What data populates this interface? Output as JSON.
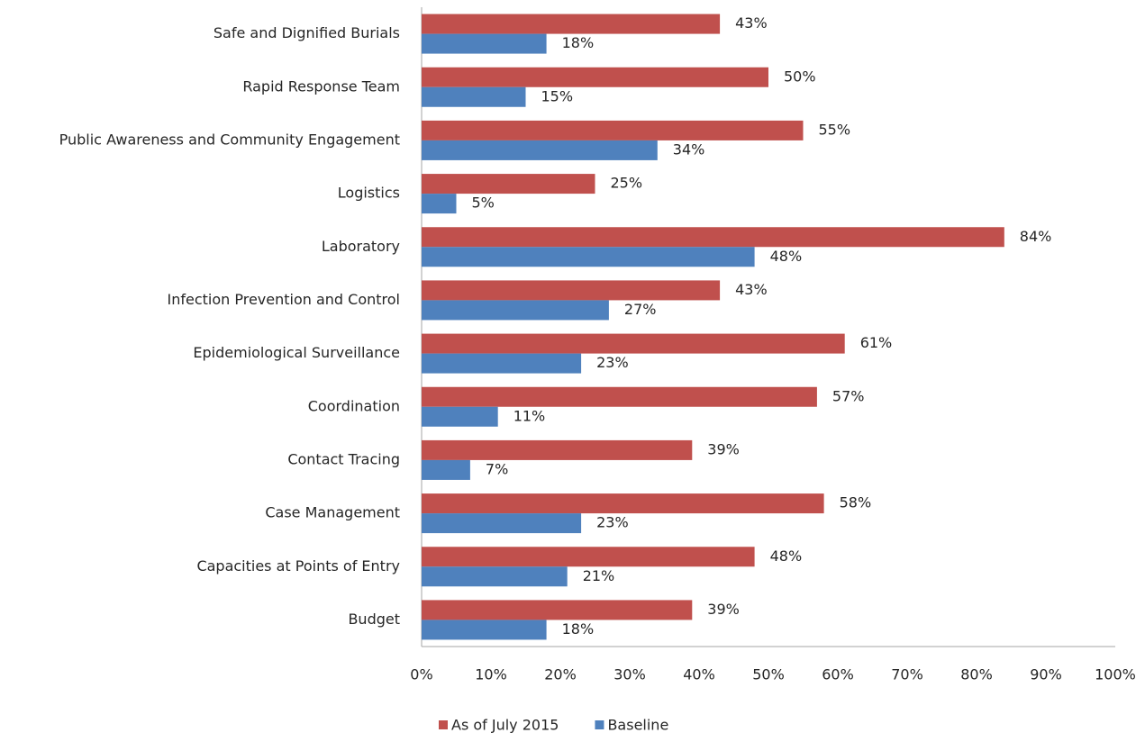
{
  "chart_data": {
    "type": "hbar",
    "categories": [
      "Safe and Dignified Burials",
      "Rapid Response Team",
      "Public Awareness and Community Engagement",
      "Logistics",
      "Laboratory",
      "Infection Prevention and Control",
      "Epidemiological Surveillance",
      "Coordination",
      "Contact Tracing",
      "Case Management",
      "Capacities at Points of Entry",
      "Budget"
    ],
    "series": [
      {
        "name": "As of July 2015",
        "color": "#c0504d",
        "values": [
          43,
          50,
          55,
          25,
          84,
          43,
          61,
          57,
          39,
          58,
          48,
          39
        ],
        "value_labels": [
          "43%",
          "50%",
          "55%",
          "25%",
          "84%",
          "43%",
          "61%",
          "57%",
          "39%",
          "58%",
          "48%",
          "39%"
        ]
      },
      {
        "name": "Baseline",
        "color": "#4f81bd",
        "values": [
          18,
          15,
          34,
          5,
          48,
          27,
          23,
          11,
          7,
          23,
          21,
          18
        ],
        "value_labels": [
          "18%",
          "15%",
          "34%",
          "5%",
          "48%",
          "27%",
          "23%",
          "11%",
          "7%",
          "23%",
          "21%",
          "18%"
        ]
      }
    ],
    "xlim": [
      0,
      100
    ],
    "xticks": [
      {
        "value": 0,
        "label": "0%"
      },
      {
        "value": 10,
        "label": "10%"
      },
      {
        "value": 20,
        "label": "20%"
      },
      {
        "value": 30,
        "label": "30%"
      },
      {
        "value": 40,
        "label": "40%"
      },
      {
        "value": 50,
        "label": "50%"
      },
      {
        "value": 60,
        "label": "60%"
      },
      {
        "value": 70,
        "label": "70%"
      },
      {
        "value": 80,
        "label": "80%"
      },
      {
        "value": 90,
        "label": "90%"
      },
      {
        "value": 100,
        "label": "100%"
      }
    ],
    "grid": false,
    "legend": "bottom"
  }
}
